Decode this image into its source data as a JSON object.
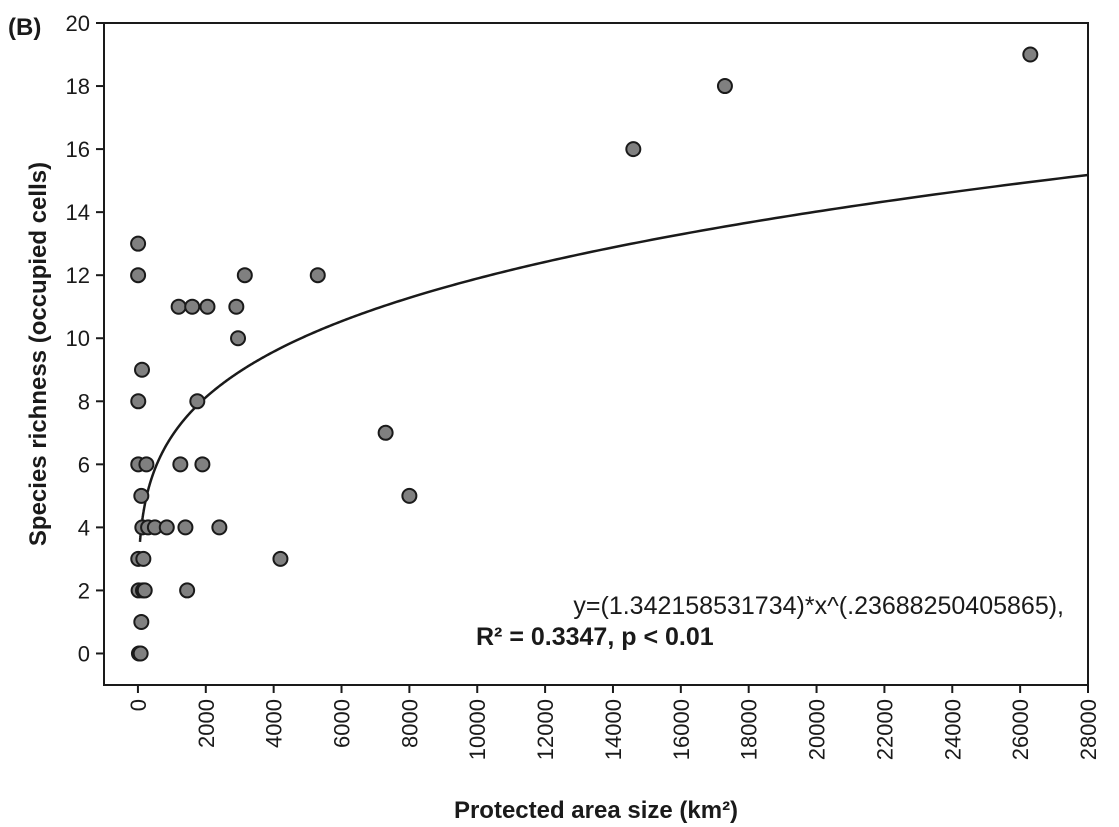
{
  "chart_data": {
    "type": "scatter",
    "panel_label": "(B)",
    "xlabel": "Protected area size (km²)",
    "ylabel": "Species richness (occupied cells)",
    "xlim": [
      -1000,
      28000
    ],
    "ylim": [
      -1,
      20
    ],
    "x_ticks": [
      0,
      2000,
      4000,
      6000,
      8000,
      10000,
      12000,
      14000,
      16000,
      18000,
      20000,
      22000,
      24000,
      26000,
      28000
    ],
    "y_ticks": [
      0,
      2,
      4,
      6,
      8,
      10,
      12,
      14,
      16,
      18,
      20
    ],
    "grid": false,
    "point_color": "#808080",
    "series": [
      {
        "points": [
          [
            5,
            13
          ],
          [
            5,
            12
          ],
          [
            10,
            8
          ],
          [
            10,
            6
          ],
          [
            10,
            3
          ],
          [
            20,
            2
          ],
          [
            30,
            0
          ],
          [
            80,
            0
          ],
          [
            100,
            1
          ],
          [
            120,
            9
          ],
          [
            130,
            4
          ],
          [
            100,
            5
          ],
          [
            150,
            2
          ],
          [
            160,
            3
          ],
          [
            200,
            2
          ],
          [
            250,
            6
          ],
          [
            300,
            4
          ],
          [
            500,
            4
          ],
          [
            850,
            4
          ],
          [
            1200,
            11
          ],
          [
            1250,
            6
          ],
          [
            1400,
            4
          ],
          [
            1450,
            2
          ],
          [
            1600,
            11
          ],
          [
            1750,
            8
          ],
          [
            1900,
            6
          ],
          [
            2050,
            11
          ],
          [
            2400,
            4
          ],
          [
            2900,
            11
          ],
          [
            2950,
            10
          ],
          [
            3150,
            12
          ],
          [
            4200,
            3
          ],
          [
            5300,
            12
          ],
          [
            7300,
            7
          ],
          [
            8000,
            5
          ],
          [
            14600,
            16
          ],
          [
            17300,
            18
          ],
          [
            26300,
            19
          ]
        ]
      }
    ],
    "fit": {
      "a": 1.342158531734,
      "b": 0.23688250405865
    },
    "equation_text": "y=(1.342158531734)*x^(.23688250405865),",
    "stats_text": "R² = 0.3347, p < 0.01"
  }
}
